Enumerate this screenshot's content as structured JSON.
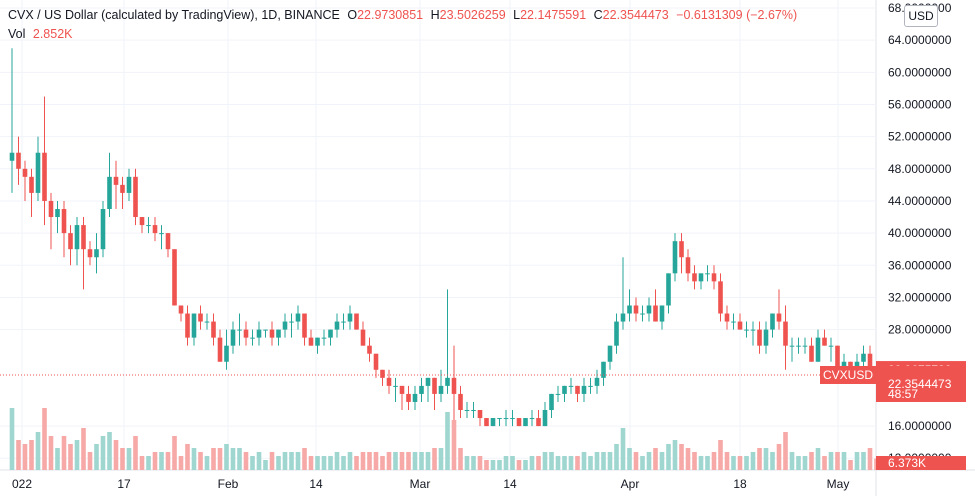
{
  "legend": {
    "symbol_title": "CVX / US Dollar (calculated by TradingView), 1D, BINANCE",
    "open_label": "O",
    "open": "22.9730851",
    "high_label": "H",
    "high": "23.5026259",
    "low_label": "L",
    "low": "22.1475591",
    "close_label": "C",
    "close": "22.3544473",
    "change": "−0.6131309 (−2.67%)",
    "volume_label": "Vol",
    "volume": "2.852K"
  },
  "currency_badge": "USD",
  "price_axis": {
    "labels": [
      "68.0000000",
      "64.0000000",
      "60.0000000",
      "56.0000000",
      "52.0000000",
      "48.0000000",
      "44.0000000",
      "40.0000000",
      "36.0000000",
      "32.0000000",
      "28.0000000",
      "16.0000000",
      "12.0000000"
    ]
  },
  "price_tags": {
    "high_marker": "22.9675782",
    "last_price": "22.3544473",
    "symbol": "CVXUSD",
    "countdown": "48:57",
    "volume": "6.373K"
  },
  "time_axis": {
    "labels": [
      "022",
      "17",
      "Feb",
      "14",
      "Mar",
      "14",
      "Apr",
      "18",
      "May"
    ]
  },
  "colors": {
    "up": "#26a69a",
    "down": "#ef5350",
    "up_vol": "#9fd6d0",
    "down_vol": "#f6a9a7",
    "grid": "#f0f3fa"
  },
  "chart_data": {
    "type": "candlestick",
    "interval": "1D",
    "x_ticks": [
      "022",
      "17",
      "Feb",
      "14",
      "Mar",
      "14",
      "Apr",
      "18",
      "May"
    ],
    "ylim": [
      10,
      68
    ],
    "candles": [
      [
        49,
        63,
        45,
        50
      ],
      [
        50,
        52,
        46,
        48
      ],
      [
        48,
        49,
        44,
        47
      ],
      [
        47,
        48,
        42,
        45
      ],
      [
        45,
        52,
        44,
        50
      ],
      [
        50,
        57,
        41,
        44
      ],
      [
        44,
        45,
        38,
        42
      ],
      [
        42,
        44,
        40,
        43
      ],
      [
        43,
        44,
        37,
        40
      ],
      [
        40,
        41,
        36,
        38
      ],
      [
        38,
        42,
        36,
        41
      ],
      [
        41,
        42,
        33,
        38
      ],
      [
        38,
        39,
        36,
        37
      ],
      [
        37,
        40,
        35,
        38
      ],
      [
        38,
        44,
        37,
        43
      ],
      [
        43,
        50,
        42,
        47
      ],
      [
        47,
        49,
        43,
        46
      ],
      [
        46,
        47,
        43,
        45
      ],
      [
        45,
        48,
        44,
        47
      ],
      [
        47,
        48,
        41,
        42
      ],
      [
        42,
        42,
        40,
        41
      ],
      [
        41,
        42,
        40,
        41
      ],
      [
        41,
        42,
        39,
        40
      ],
      [
        40,
        41,
        38,
        40
      ],
      [
        40,
        40,
        37,
        38
      ],
      [
        38,
        38,
        31,
        31
      ],
      [
        31,
        31,
        29,
        30
      ],
      [
        30,
        31,
        26,
        27
      ],
      [
        27,
        30,
        26,
        30
      ],
      [
        30,
        31,
        28,
        29
      ],
      [
        29,
        30,
        28,
        29
      ],
      [
        29,
        30,
        26,
        27
      ],
      [
        27,
        28,
        24,
        24
      ],
      [
        24,
        28,
        23,
        26
      ],
      [
        26,
        29,
        25,
        28
      ],
      [
        28,
        30,
        26,
        28
      ],
      [
        28,
        29,
        26,
        27
      ],
      [
        27,
        28,
        26,
        27
      ],
      [
        27,
        29,
        26,
        28
      ],
      [
        28,
        28,
        27,
        28
      ],
      [
        28,
        29,
        26,
        27
      ],
      [
        27,
        28,
        26,
        28
      ],
      [
        28,
        30,
        27,
        29
      ],
      [
        29,
        30,
        27,
        29
      ],
      [
        29,
        31,
        28,
        30
      ],
      [
        30,
        30,
        26,
        27
      ],
      [
        27,
        28,
        26,
        26
      ],
      [
        26,
        27,
        25,
        27
      ],
      [
        27,
        28,
        26,
        27
      ],
      [
        27,
        28,
        26,
        28
      ],
      [
        28,
        30,
        27,
        29
      ],
      [
        29,
        30,
        28,
        29
      ],
      [
        29,
        31,
        28,
        30
      ],
      [
        30,
        30,
        28,
        28
      ],
      [
        28,
        29,
        26,
        26
      ],
      [
        26,
        27,
        24,
        25
      ],
      [
        25,
        25,
        22,
        23
      ],
      [
        23,
        23,
        21,
        22
      ],
      [
        22,
        23,
        20,
        21
      ],
      [
        21,
        22,
        19,
        21
      ],
      [
        21,
        21,
        18,
        20
      ],
      [
        20,
        21,
        18,
        19
      ],
      [
        19,
        21,
        18,
        20
      ],
      [
        20,
        22,
        19,
        21
      ],
      [
        21,
        22,
        19,
        22
      ],
      [
        22,
        22,
        18,
        20
      ],
      [
        20,
        23,
        19,
        21
      ],
      [
        21,
        33,
        20,
        22
      ],
      [
        22,
        26,
        15,
        20
      ],
      [
        20,
        21,
        17,
        18
      ],
      [
        18,
        19,
        17,
        18
      ],
      [
        18,
        19,
        17,
        18
      ],
      [
        18,
        18,
        16,
        17
      ],
      [
        17,
        17,
        16,
        16
      ],
      [
        16,
        17,
        16,
        17
      ],
      [
        17,
        17,
        16,
        17
      ],
      [
        17,
        18,
        16,
        17
      ],
      [
        17,
        18,
        16,
        17
      ],
      [
        17,
        17,
        16,
        16
      ],
      [
        16,
        17,
        16,
        17
      ],
      [
        17,
        18,
        16,
        17
      ],
      [
        17,
        18,
        16,
        16
      ],
      [
        16,
        19,
        16,
        18
      ],
      [
        18,
        20,
        17,
        20
      ],
      [
        20,
        21,
        19,
        20
      ],
      [
        20,
        21,
        19,
        21
      ],
      [
        21,
        22,
        20,
        21
      ],
      [
        21,
        21,
        19,
        20
      ],
      [
        20,
        22,
        19,
        21
      ],
      [
        21,
        22,
        20,
        21
      ],
      [
        21,
        23,
        20,
        22
      ],
      [
        22,
        24,
        21,
        24
      ],
      [
        24,
        26,
        23,
        26
      ],
      [
        26,
        30,
        25,
        29
      ],
      [
        29,
        37,
        28,
        30
      ],
      [
        30,
        33,
        29,
        31
      ],
      [
        31,
        32,
        29,
        30
      ],
      [
        30,
        31,
        29,
        30
      ],
      [
        30,
        32,
        29,
        31
      ],
      [
        31,
        33,
        29,
        29
      ],
      [
        29,
        31,
        28,
        31
      ],
      [
        31,
        35,
        30,
        35
      ],
      [
        35,
        40,
        34,
        39
      ],
      [
        39,
        40,
        35,
        37
      ],
      [
        37,
        38,
        34,
        35
      ],
      [
        35,
        36,
        33,
        34
      ],
      [
        34,
        35,
        33,
        35
      ],
      [
        35,
        36,
        34,
        35
      ],
      [
        35,
        36,
        33,
        34
      ],
      [
        34,
        35,
        29,
        30
      ],
      [
        30,
        31,
        28,
        29
      ],
      [
        29,
        30,
        28,
        29
      ],
      [
        29,
        30,
        28,
        28
      ],
      [
        28,
        29,
        27,
        28
      ],
      [
        28,
        29,
        26,
        28
      ],
      [
        28,
        29,
        25,
        26
      ],
      [
        26,
        29,
        25,
        28
      ],
      [
        28,
        30,
        27,
        30
      ],
      [
        30,
        33,
        28,
        29
      ],
      [
        29,
        31,
        23,
        26
      ],
      [
        26,
        27,
        24,
        26
      ],
      [
        26,
        27,
        25,
        26
      ],
      [
        26,
        27,
        25,
        26
      ],
      [
        26,
        27,
        24,
        24
      ],
      [
        24,
        28,
        24,
        27
      ],
      [
        27,
        28,
        26,
        26
      ],
      [
        26,
        27,
        24,
        26
      ],
      [
        26,
        26,
        23,
        23
      ],
      [
        23,
        25,
        22,
        24
      ],
      [
        24,
        24,
        23,
        23
      ],
      [
        23,
        25,
        22,
        24
      ],
      [
        24,
        26,
        23,
        25
      ],
      [
        25,
        26,
        22,
        23
      ],
      [
        22.97,
        23.5,
        22.15,
        22.35
      ]
    ],
    "volume_max_k": 100
  }
}
